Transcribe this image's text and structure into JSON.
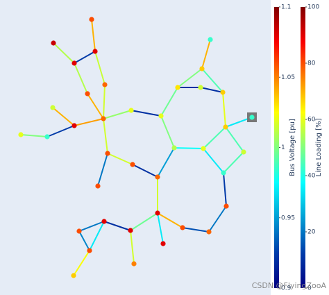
{
  "chart_data": {
    "type": "network",
    "xlim": [
      0,
      380
    ],
    "ylim": [
      0,
      415
    ],
    "colorscale": [
      [
        0,
        "#000083"
      ],
      [
        0.125,
        "#003caa"
      ],
      [
        0.375,
        "#05ffff"
      ],
      [
        0.625,
        "#ffff00"
      ],
      [
        0.875,
        "#fa0000"
      ],
      [
        1,
        "#800000"
      ]
    ],
    "nodes": {
      "x": [
        124,
        69,
        129,
        99,
        143,
        118,
        141,
        68,
        99,
        60,
        22,
        181,
        295,
        283,
        248,
        281,
        313,
        355,
        317,
        224,
        243,
        285,
        343,
        314,
        147,
        183,
        219,
        133,
        318,
        219,
        142,
        106,
        180,
        255,
        293,
        121,
        227,
        185,
        98
      ],
      "y": [
        392,
        358,
        346,
        329,
        298,
        285,
        249,
        265,
        239,
        223,
        226,
        261,
        363,
        321,
        294,
        294,
        287,
        251,
        237,
        253,
        207,
        206,
        201,
        171,
        199,
        183,
        165,
        152,
        123,
        113,
        101,
        87,
        88,
        92,
        86,
        59,
        69,
        40,
        23
      ],
      "values": [
        1.06,
        1.085,
        1.08,
        1.08,
        1.055,
        1.06,
        1.055,
        1.015,
        1.08,
        0.985,
        1.02,
        1.02,
        0.985,
        1.035,
        1.03,
        1.015,
        1.035,
        0.985,
        1.035,
        1.02,
        1.01,
        1.02,
        1.015,
        0.985,
        1.06,
        1.06,
        1.055,
        1.06,
        1.06,
        1.08,
        1.08,
        1.06,
        1.08,
        1.06,
        1.055,
        1.06,
        1.08,
        1.05,
        1.035
      ]
    },
    "edges": {
      "from": [
        0,
        2,
        1,
        3,
        5,
        2,
        4,
        7,
        8,
        9,
        10,
        6,
        11,
        19,
        14,
        13,
        13,
        14,
        15,
        16,
        18,
        18,
        22,
        18,
        21,
        19,
        20,
        6,
        24,
        25,
        24,
        26,
        20,
        23,
        28,
        34,
        33,
        29,
        29,
        32,
        30,
        30,
        31,
        35,
        32
      ],
      "to": [
        2,
        3,
        3,
        5,
        6,
        4,
        6,
        8,
        6,
        8,
        9,
        11,
        19,
        14,
        13,
        12,
        16,
        15,
        16,
        18,
        17,
        22,
        23,
        21,
        23,
        20,
        21,
        24,
        25,
        26,
        27,
        29,
        26,
        28,
        34,
        33,
        29,
        36,
        32,
        30,
        31,
        35,
        35,
        38,
        37
      ],
      "values": [
        70,
        12,
        55,
        55,
        70,
        57,
        58,
        70,
        72,
        12,
        50,
        52,
        10,
        48,
        50,
        70,
        45,
        10,
        10,
        60,
        35,
        45,
        45,
        45,
        35,
        50,
        38,
        58,
        58,
        10,
        20,
        58,
        25,
        12,
        20,
        15,
        70,
        35,
        48,
        10,
        20,
        35,
        22,
        62,
        58
      ]
    },
    "ext_grid": [
      17
    ],
    "colorbars": [
      {
        "title": "Bus Voltage [pu]",
        "lim": [
          0.9,
          1.1
        ],
        "ticks": [
          0.9,
          0.95,
          1,
          1.05,
          1.1
        ]
      },
      {
        "title": "Line Loading [%]",
        "lim": [
          0,
          100
        ],
        "ticks": [
          0,
          20,
          40,
          60,
          80,
          100
        ]
      }
    ],
    "watermark": "CSDN @FlyingZooA"
  }
}
